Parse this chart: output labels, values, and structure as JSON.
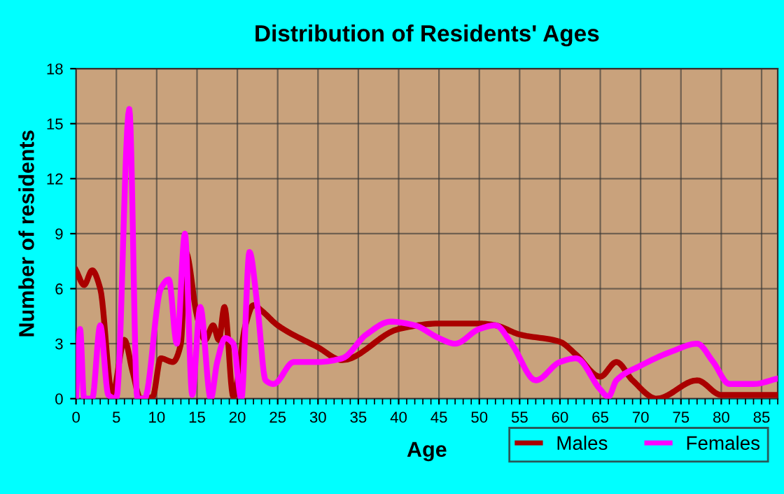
{
  "chart_data": {
    "type": "line",
    "title": "Distribution of Residents' Ages",
    "xlabel": "Age",
    "ylabel": "Number of residents",
    "xlim": [
      0,
      87
    ],
    "xticks": [
      0,
      5,
      10,
      15,
      20,
      25,
      30,
      35,
      40,
      45,
      50,
      55,
      60,
      65,
      70,
      75,
      80,
      85
    ],
    "ylim": [
      0,
      18
    ],
    "yticks": [
      0,
      3,
      6,
      9,
      12,
      15,
      18
    ],
    "grid": true,
    "legend": "bottom right",
    "marker": "none",
    "line_style": "solid",
    "series": [
      {
        "name": "Males",
        "color": "#aa0000",
        "x": [
          0,
          1,
          2,
          3,
          4.5,
          6,
          7,
          8,
          9.5,
          10.5,
          12,
          13,
          13.6,
          15,
          16,
          17,
          17.7,
          18.4,
          19.5,
          21,
          22,
          23,
          25,
          30,
          33,
          40,
          45,
          50,
          52,
          55,
          60,
          62,
          65,
          67,
          69,
          72,
          77,
          80,
          85,
          87
        ],
        "values": [
          7,
          6.2,
          7,
          6,
          0.2,
          3.2,
          1.5,
          0,
          0.1,
          2.2,
          2,
          3,
          8,
          4.5,
          3.2,
          4,
          3.2,
          5,
          0.1,
          4,
          5.1,
          4.8,
          4,
          2.8,
          2.1,
          3.8,
          4.1,
          4.1,
          4,
          3.5,
          3.1,
          2.4,
          1.2,
          2,
          1,
          0,
          1,
          0.2,
          0.2,
          0.2
        ]
      },
      {
        "name": "Females",
        "color": "#ff00ff",
        "x": [
          0,
          0.5,
          1,
          2,
          3,
          4,
          5,
          6.6,
          7.6,
          8.5,
          10.5,
          11.5,
          12.5,
          13.5,
          14.4,
          15.4,
          16.7,
          17.5,
          18.5,
          19.5,
          20.5,
          21.5,
          22.5,
          23.5,
          24.5,
          27,
          30,
          33,
          36,
          39,
          42,
          45,
          47,
          50,
          52,
          54,
          57,
          60,
          62,
          65,
          66,
          67,
          70,
          74,
          77,
          79,
          81,
          84,
          87
        ],
        "values": [
          0,
          3.8,
          0,
          0,
          4,
          0.2,
          0,
          15.8,
          0,
          0,
          6,
          6.5,
          3,
          9,
          0.2,
          5,
          0,
          2,
          3.3,
          3,
          0,
          8,
          5,
          1,
          0.8,
          2,
          2,
          2.2,
          3.5,
          4.2,
          4,
          3.3,
          3,
          3.8,
          4,
          3,
          1,
          2,
          2.2,
          0.5,
          0.1,
          1,
          1.8,
          2.6,
          3,
          2,
          0.8,
          0.8,
          1.1
        ]
      }
    ]
  }
}
